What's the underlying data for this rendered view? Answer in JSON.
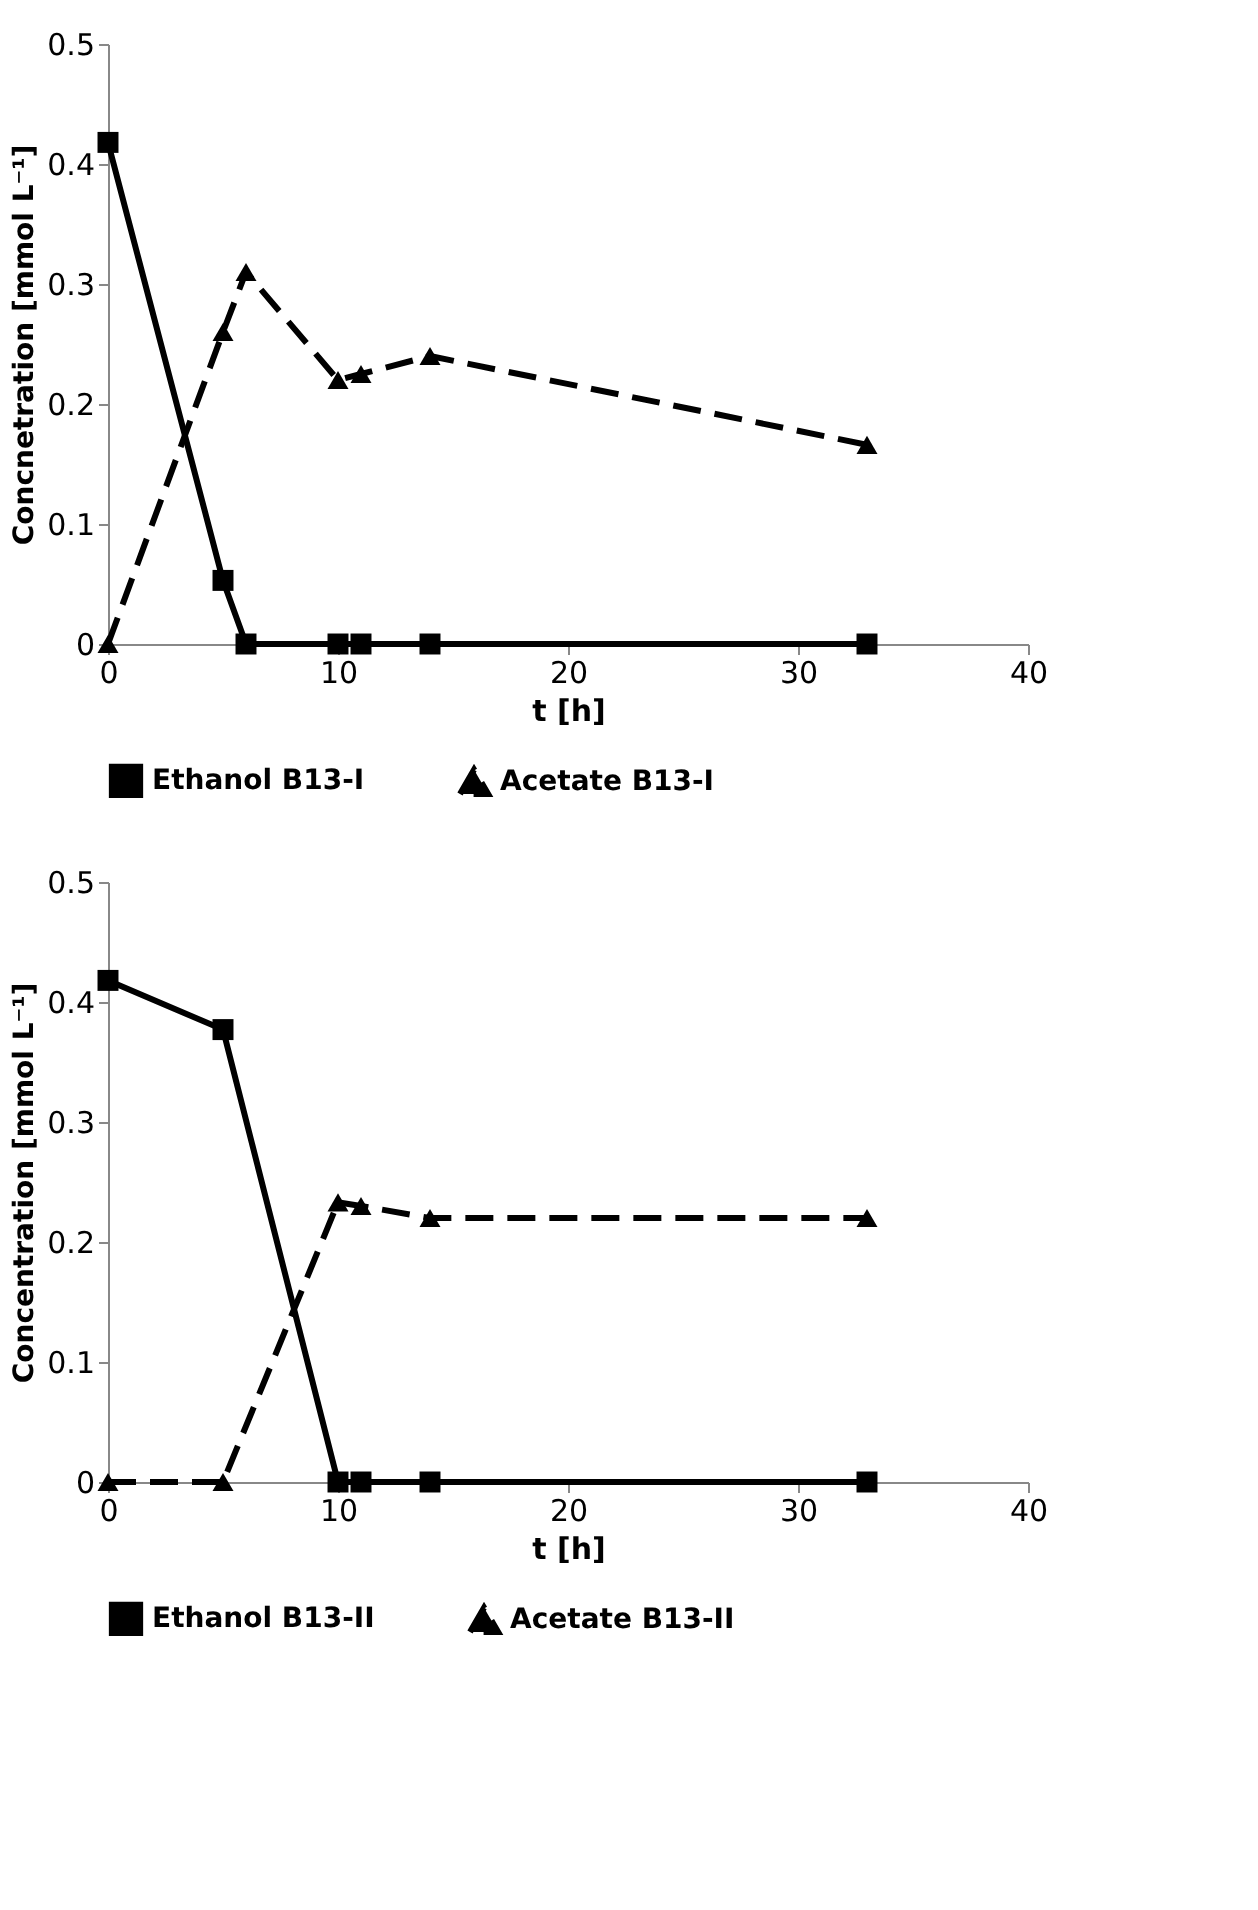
{
  "chart_data": [
    {
      "type": "line",
      "xlabel": "t [h]",
      "ylabel": "Concnetration [mmol L⁻¹]",
      "x": [
        0,
        5,
        6,
        10,
        11,
        14,
        33
      ],
      "xlim": [
        0,
        40
      ],
      "xticks": [
        0,
        10,
        20,
        30,
        40
      ],
      "ylim": [
        0,
        0.5
      ],
      "yticks": [
        0,
        0.1,
        0.2,
        0.3,
        0.4,
        0.5
      ],
      "grid": false,
      "legend": "bottom",
      "series": [
        {
          "name": "Ethanol B13-I",
          "color": "#000000",
          "marker": "square",
          "line_style": "solid",
          "values": [
            0.418,
            0.053,
            0,
            0,
            0,
            0,
            0
          ]
        },
        {
          "name": "Acetate B13-I",
          "color": "#000000",
          "marker": "triangle",
          "line_style": "dashed",
          "values": [
            0,
            0.26,
            0.31,
            0.22,
            0.225,
            0.24,
            0.166
          ]
        }
      ]
    },
    {
      "type": "line",
      "xlabel": "t [h]",
      "ylabel": "Concentration [mmol L⁻¹]",
      "x": [
        0,
        5,
        10,
        11,
        14,
        33
      ],
      "xlim": [
        0,
        40
      ],
      "xticks": [
        0,
        10,
        20,
        30,
        40
      ],
      "ylim": [
        0,
        0.5
      ],
      "yticks": [
        0,
        0.1,
        0.2,
        0.3,
        0.4,
        0.5
      ],
      "grid": false,
      "legend": "bottom",
      "series": [
        {
          "name": "Ethanol B13-II",
          "color": "#000000",
          "marker": "square",
          "line_style": "solid",
          "values": [
            0.418,
            0.377,
            0,
            0,
            0,
            0
          ]
        },
        {
          "name": "Acetate B13-II",
          "color": "#000000",
          "marker": "triangle",
          "line_style": "dashed",
          "values": [
            0,
            0,
            0.233,
            0.23,
            0.22,
            0.22
          ]
        }
      ]
    }
  ]
}
